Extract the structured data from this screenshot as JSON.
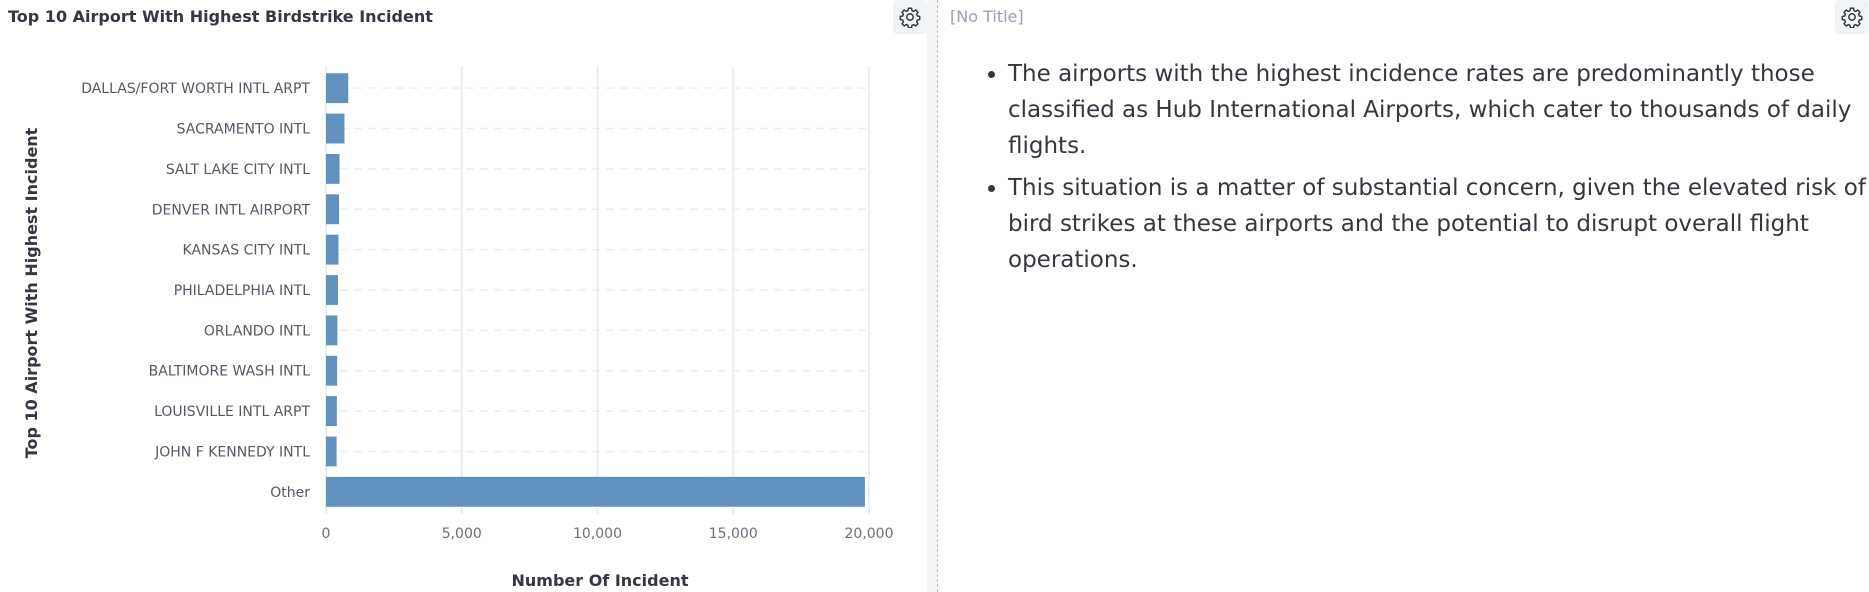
{
  "left_panel": {
    "title": "Top 10 Airport With Highest Birdstrike Incident",
    "gear_icon": "gear-icon"
  },
  "right_panel": {
    "title": "[No Title]",
    "gear_icon": "gear-icon",
    "bullets": [
      "The airports with the highest incidence rates are predominantly those classified as Hub International Airports, which cater to thousands of daily flights.",
      "This situation is a matter of substantial concern, given the elevated risk of bird strikes at these airports and the potential to disrupt overall flight operations."
    ]
  },
  "chart_data": {
    "type": "bar",
    "orientation": "horizontal",
    "categories": [
      "DALLAS/FORT WORTH INTL ARPT",
      "SACRAMENTO INTL",
      "SALT LAKE CITY INTL",
      "DENVER INTL AIRPORT",
      "KANSAS CITY INTL",
      "PHILADELPHIA INTL",
      "ORLANDO INTL",
      "BALTIMORE WASH INTL",
      "LOUISVILLE INTL ARPT",
      "JOHN F KENNEDY INTL",
      "Other"
    ],
    "values": [
      820,
      680,
      500,
      480,
      460,
      440,
      420,
      410,
      400,
      390,
      19850
    ],
    "xlabel": "Number Of Incident",
    "ylabel": "Top 10 Airport With Highest Incident",
    "xlim": [
      0,
      20000
    ],
    "xticks": [
      0,
      5000,
      10000,
      15000,
      20000
    ],
    "xtick_labels": [
      "0",
      "5,000",
      "10,000",
      "15,000",
      "20,000"
    ],
    "grid": true,
    "bar_color": "#6092c0"
  }
}
